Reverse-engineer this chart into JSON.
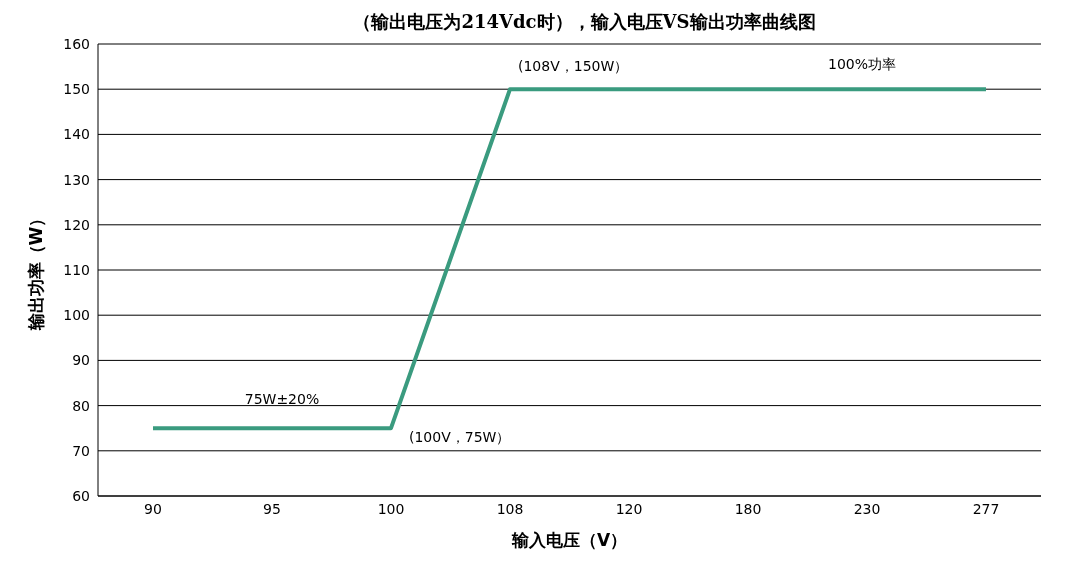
{
  "chart_data": {
    "type": "line",
    "title": "（输出电压为214Vdc时），输入电压VS输出功率曲线图",
    "xlabel": "输入电压（V）",
    "ylabel": "输出功率（W）",
    "categories": [
      "90",
      "95",
      "100",
      "108",
      "120",
      "180",
      "230",
      "277"
    ],
    "series": [
      {
        "color": "#3a9b7f",
        "values": [
          75,
          75,
          75,
          150,
          150,
          150,
          150,
          150
        ]
      }
    ],
    "ylim": [
      60,
      160
    ],
    "yticks": [
      60,
      70,
      80,
      90,
      100,
      110,
      120,
      130,
      140,
      150,
      160
    ],
    "grid": "y",
    "marker": "none",
    "line_style": "solid",
    "annotations": [
      {
        "text": "(108V，150W）",
        "x": "108",
        "y": 150
      },
      "100%功率",
      {
        "text": "75W±20%",
        "x": "95",
        "y": 75
      },
      {
        "text": "(100V，75W）",
        "x": "100",
        "y": 75
      }
    ]
  }
}
